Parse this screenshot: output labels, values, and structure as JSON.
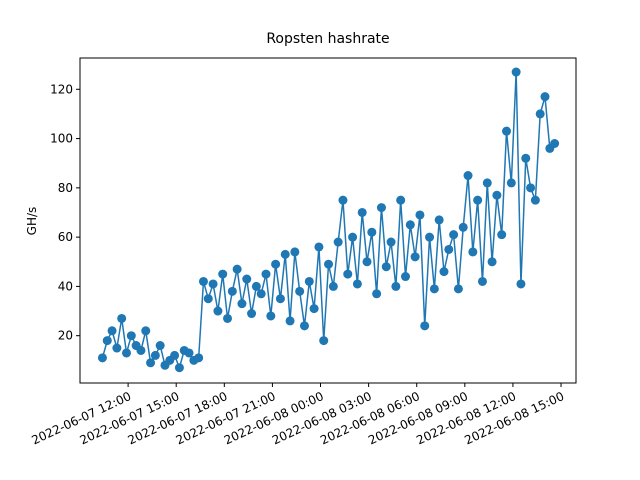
{
  "chart_data": {
    "type": "line",
    "title": "Ropsten hashrate",
    "y_label": "GH/s",
    "color": "#1f77b4",
    "x": [
      "2022-06-07 10:24",
      "2022-06-07 10:42",
      "2022-06-07 11:00",
      "2022-06-07 11:18",
      "2022-06-07 11:36",
      "2022-06-07 11:54",
      "2022-06-07 12:12",
      "2022-06-07 12:30",
      "2022-06-07 12:48",
      "2022-06-07 13:06",
      "2022-06-07 13:24",
      "2022-06-07 13:42",
      "2022-06-07 14:00",
      "2022-06-07 14:18",
      "2022-06-07 14:36",
      "2022-06-07 14:54",
      "2022-06-07 15:12",
      "2022-06-07 15:30",
      "2022-06-07 15:48",
      "2022-06-07 16:06",
      "2022-06-07 16:24",
      "2022-06-07 16:42",
      "2022-06-07 17:00",
      "2022-06-07 17:18",
      "2022-06-07 17:36",
      "2022-06-07 17:54",
      "2022-06-07 18:12",
      "2022-06-07 18:30",
      "2022-06-07 18:48",
      "2022-06-07 19:06",
      "2022-06-07 19:24",
      "2022-06-07 19:42",
      "2022-06-07 20:00",
      "2022-06-07 20:18",
      "2022-06-07 20:36",
      "2022-06-07 20:54",
      "2022-06-07 21:12",
      "2022-06-07 21:30",
      "2022-06-07 21:48",
      "2022-06-07 22:06",
      "2022-06-07 22:24",
      "2022-06-07 22:42",
      "2022-06-07 23:00",
      "2022-06-07 23:18",
      "2022-06-07 23:36",
      "2022-06-07 23:54",
      "2022-06-08 00:12",
      "2022-06-08 00:30",
      "2022-06-08 00:48",
      "2022-06-08 01:06",
      "2022-06-08 01:24",
      "2022-06-08 01:42",
      "2022-06-08 02:00",
      "2022-06-08 02:18",
      "2022-06-08 02:36",
      "2022-06-08 02:54",
      "2022-06-08 03:12",
      "2022-06-08 03:30",
      "2022-06-08 03:48",
      "2022-06-08 04:06",
      "2022-06-08 04:24",
      "2022-06-08 04:42",
      "2022-06-08 05:00",
      "2022-06-08 05:18",
      "2022-06-08 05:36",
      "2022-06-08 05:54",
      "2022-06-08 06:12",
      "2022-06-08 06:30",
      "2022-06-08 06:48",
      "2022-06-08 07:06",
      "2022-06-08 07:24",
      "2022-06-08 07:42",
      "2022-06-08 08:00",
      "2022-06-08 08:18",
      "2022-06-08 08:36",
      "2022-06-08 08:54",
      "2022-06-08 09:12",
      "2022-06-08 09:30",
      "2022-06-08 09:48",
      "2022-06-08 10:06",
      "2022-06-08 10:24",
      "2022-06-08 10:42",
      "2022-06-08 11:00",
      "2022-06-08 11:18",
      "2022-06-08 11:36",
      "2022-06-08 11:54",
      "2022-06-08 12:12",
      "2022-06-08 12:30",
      "2022-06-08 12:48",
      "2022-06-08 13:06",
      "2022-06-08 13:24",
      "2022-06-08 13:42",
      "2022-06-08 14:00",
      "2022-06-08 14:18",
      "2022-06-08 14:36"
    ],
    "values": [
      11,
      18,
      22,
      15,
      27,
      13,
      20,
      16,
      14,
      22,
      9,
      12,
      16,
      8,
      10,
      12,
      7,
      14,
      13,
      10,
      11,
      42,
      35,
      41,
      30,
      45,
      27,
      38,
      47,
      33,
      43,
      29,
      40,
      37,
      45,
      28,
      49,
      35,
      53,
      26,
      54,
      38,
      24,
      42,
      31,
      56,
      18,
      49,
      40,
      58,
      75,
      45,
      60,
      41,
      70,
      50,
      62,
      37,
      72,
      48,
      58,
      40,
      75,
      44,
      65,
      52,
      69,
      24,
      60,
      39,
      67,
      46,
      55,
      61,
      39,
      64,
      85,
      54,
      75,
      42,
      82,
      50,
      77,
      61,
      103,
      82,
      127,
      41,
      92,
      80,
      75,
      110,
      117,
      96,
      98
    ],
    "xlim": [
      "2022-06-07 09:00",
      "2022-06-08 15:56"
    ],
    "xticks": [
      "2022-06-07 12:00",
      "2022-06-07 15:00",
      "2022-06-07 18:00",
      "2022-06-07 21:00",
      "2022-06-08 00:00",
      "2022-06-08 03:00",
      "2022-06-08 06:00",
      "2022-06-08 09:00",
      "2022-06-08 12:00",
      "2022-06-08 15:00"
    ],
    "ylim": [
      0.8,
      132.7
    ],
    "yticks": [
      20,
      40,
      60,
      80,
      100,
      120
    ],
    "grid": false
  }
}
